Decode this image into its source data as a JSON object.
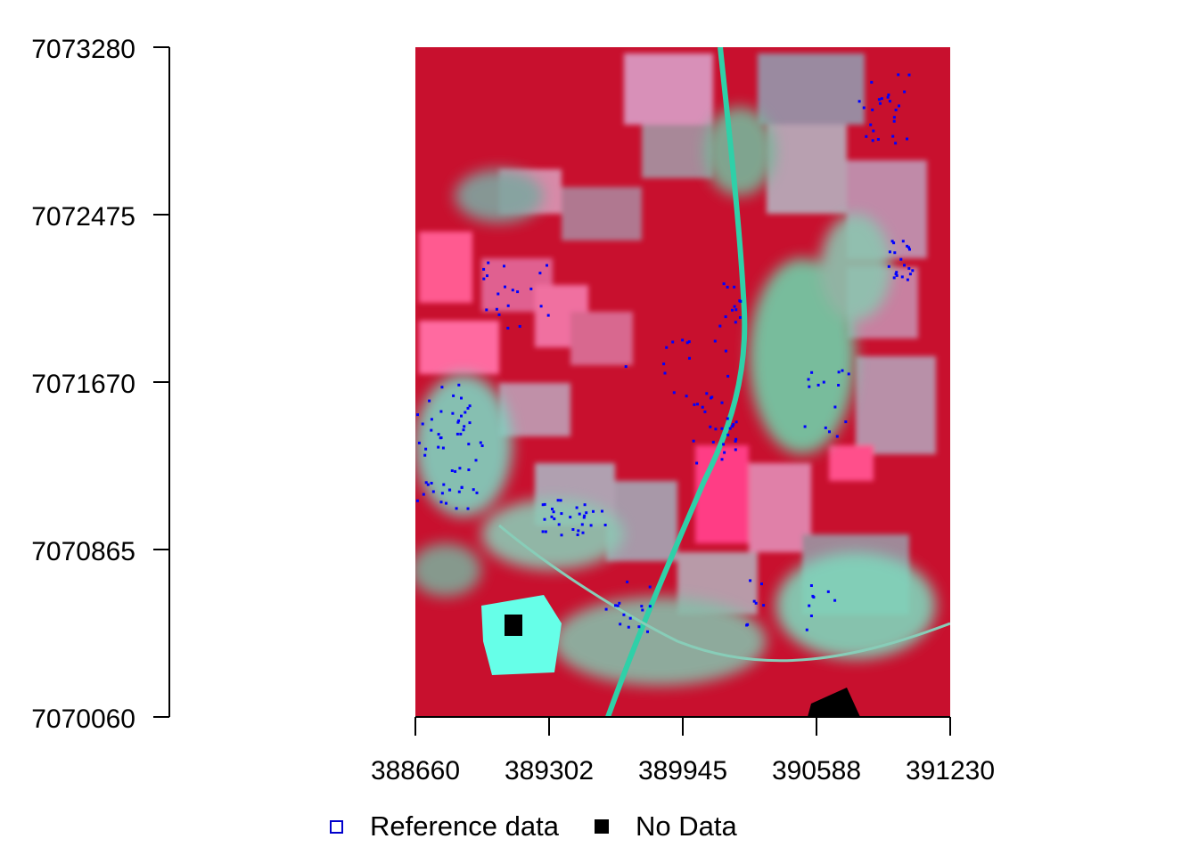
{
  "map": {
    "x_axis": {
      "ticks": [
        "388660",
        "389302",
        "389945",
        "390588",
        "391230"
      ]
    },
    "y_axis": {
      "ticks": [
        "7073280",
        "7072475",
        "7071670",
        "7070865",
        "7070060"
      ]
    },
    "colors": {
      "vegetation": "#c8102e",
      "fields": "#ff4f8b",
      "bare": "#a58a9a",
      "urban": "#5fd6b8",
      "reference_points": "#0000ff",
      "no_data": "#000000"
    }
  },
  "legend": {
    "items": [
      {
        "label": "Reference data",
        "symbol": "open-square",
        "color": "#0000cc"
      },
      {
        "label": "No Data",
        "symbol": "filled-square",
        "color": "#000000"
      }
    ]
  }
}
